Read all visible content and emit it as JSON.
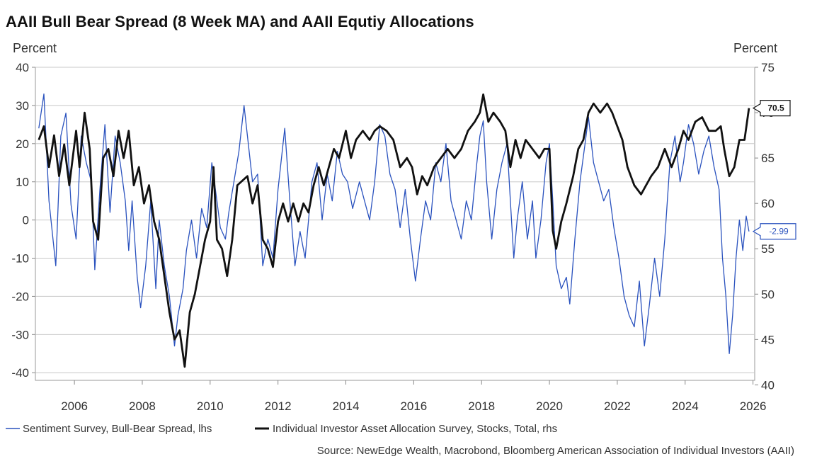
{
  "title": "AAII Bull Bear Spread (8 Week MA) and AAII Equtiy Allocations",
  "source": "Source: NewEdge Wealth, Macrobond, Bloomberg American Association of Individual Investors (AAII)",
  "chart_data": {
    "type": "line",
    "title": "AAII Bull Bear Spread (8 Week MA) and AAII Equtiy Allocations",
    "x_range": [
      2004.85,
      2026.05
    ],
    "x_ticks": [
      "2006",
      "2008",
      "2010",
      "2012",
      "2014",
      "2016",
      "2018",
      "2020",
      "2022",
      "2024",
      "2026"
    ],
    "left_axis": {
      "label": "Percent",
      "range": [
        -42,
        40
      ],
      "ticks": [
        "40",
        "30",
        "20",
        "10",
        "0",
        "-10",
        "-20",
        "-30",
        "-40"
      ]
    },
    "right_axis": {
      "label": "Percent",
      "range": [
        40.5,
        75
      ],
      "ticks": [
        "75",
        "70",
        "65",
        "60",
        "55",
        "50",
        "45",
        "40"
      ]
    },
    "grid": true,
    "series": [
      {
        "name": "Sentiment Survey, Bull-Bear Spread, lhs",
        "color": "#2a52be",
        "axis": "left",
        "last_value_label": "-2.99",
        "points": [
          [
            2004.95,
            24
          ],
          [
            2005.1,
            33
          ],
          [
            2005.25,
            5
          ],
          [
            2005.45,
            -12
          ],
          [
            2005.6,
            22
          ],
          [
            2005.75,
            28
          ],
          [
            2005.9,
            4
          ],
          [
            2006.05,
            -5
          ],
          [
            2006.2,
            22
          ],
          [
            2006.35,
            15
          ],
          [
            2006.5,
            10
          ],
          [
            2006.6,
            -13
          ],
          [
            2006.75,
            8
          ],
          [
            2006.9,
            25
          ],
          [
            2007.05,
            2
          ],
          [
            2007.2,
            22
          ],
          [
            2007.35,
            15
          ],
          [
            2007.5,
            5
          ],
          [
            2007.6,
            -8
          ],
          [
            2007.7,
            5
          ],
          [
            2007.85,
            -15
          ],
          [
            2007.95,
            -23
          ],
          [
            2008.1,
            -12
          ],
          [
            2008.25,
            5
          ],
          [
            2008.4,
            -18
          ],
          [
            2008.5,
            0
          ],
          [
            2008.65,
            -12
          ],
          [
            2008.8,
            -20
          ],
          [
            2008.95,
            -33
          ],
          [
            2009.05,
            -25
          ],
          [
            2009.2,
            -18
          ],
          [
            2009.3,
            -8
          ],
          [
            2009.45,
            0
          ],
          [
            2009.6,
            -10
          ],
          [
            2009.75,
            3
          ],
          [
            2009.9,
            -2
          ],
          [
            2010.05,
            15
          ],
          [
            2010.2,
            5
          ],
          [
            2010.3,
            -2
          ],
          [
            2010.45,
            -5
          ],
          [
            2010.55,
            2
          ],
          [
            2010.7,
            10
          ],
          [
            2010.85,
            18
          ],
          [
            2011.0,
            30
          ],
          [
            2011.1,
            22
          ],
          [
            2011.25,
            10
          ],
          [
            2011.4,
            12
          ],
          [
            2011.55,
            -12
          ],
          [
            2011.7,
            -5
          ],
          [
            2011.85,
            -10
          ],
          [
            2012.0,
            8
          ],
          [
            2012.2,
            24
          ],
          [
            2012.35,
            5
          ],
          [
            2012.5,
            -12
          ],
          [
            2012.65,
            -3
          ],
          [
            2012.8,
            -10
          ],
          [
            2013.0,
            10
          ],
          [
            2013.15,
            15
          ],
          [
            2013.3,
            0
          ],
          [
            2013.45,
            12
          ],
          [
            2013.6,
            5
          ],
          [
            2013.75,
            18
          ],
          [
            2013.9,
            12
          ],
          [
            2014.05,
            10
          ],
          [
            2014.2,
            3
          ],
          [
            2014.4,
            10
          ],
          [
            2014.55,
            5
          ],
          [
            2014.7,
            0
          ],
          [
            2014.85,
            10
          ],
          [
            2015.0,
            25
          ],
          [
            2015.15,
            22
          ],
          [
            2015.3,
            12
          ],
          [
            2015.45,
            8
          ],
          [
            2015.6,
            -2
          ],
          [
            2015.75,
            8
          ],
          [
            2015.9,
            -5
          ],
          [
            2016.05,
            -16
          ],
          [
            2016.2,
            -5
          ],
          [
            2016.35,
            5
          ],
          [
            2016.5,
            0
          ],
          [
            2016.65,
            15
          ],
          [
            2016.8,
            10
          ],
          [
            2016.95,
            20
          ],
          [
            2017.1,
            5
          ],
          [
            2017.25,
            0
          ],
          [
            2017.4,
            -5
          ],
          [
            2017.55,
            5
          ],
          [
            2017.7,
            0
          ],
          [
            2017.85,
            14
          ],
          [
            2017.95,
            22
          ],
          [
            2018.05,
            26
          ],
          [
            2018.15,
            10
          ],
          [
            2018.3,
            -5
          ],
          [
            2018.45,
            8
          ],
          [
            2018.6,
            15
          ],
          [
            2018.75,
            20
          ],
          [
            2018.85,
            5
          ],
          [
            2018.95,
            -10
          ],
          [
            2019.05,
            0
          ],
          [
            2019.2,
            10
          ],
          [
            2019.35,
            -5
          ],
          [
            2019.5,
            5
          ],
          [
            2019.6,
            -10
          ],
          [
            2019.75,
            0
          ],
          [
            2019.9,
            15
          ],
          [
            2020.0,
            20
          ],
          [
            2020.1,
            5
          ],
          [
            2020.2,
            -12
          ],
          [
            2020.35,
            -18
          ],
          [
            2020.5,
            -15
          ],
          [
            2020.6,
            -22
          ],
          [
            2020.75,
            -5
          ],
          [
            2020.9,
            10
          ],
          [
            2021.05,
            20
          ],
          [
            2021.15,
            27
          ],
          [
            2021.3,
            15
          ],
          [
            2021.45,
            10
          ],
          [
            2021.6,
            5
          ],
          [
            2021.75,
            8
          ],
          [
            2021.9,
            -2
          ],
          [
            2022.05,
            -10
          ],
          [
            2022.2,
            -20
          ],
          [
            2022.35,
            -25
          ],
          [
            2022.5,
            -28
          ],
          [
            2022.65,
            -16
          ],
          [
            2022.8,
            -33
          ],
          [
            2022.95,
            -22
          ],
          [
            2023.1,
            -10
          ],
          [
            2023.25,
            -20
          ],
          [
            2023.4,
            -5
          ],
          [
            2023.55,
            15
          ],
          [
            2023.7,
            22
          ],
          [
            2023.85,
            10
          ],
          [
            2023.95,
            15
          ],
          [
            2024.1,
            25
          ],
          [
            2024.25,
            20
          ],
          [
            2024.4,
            12
          ],
          [
            2024.55,
            18
          ],
          [
            2024.7,
            22
          ],
          [
            2024.85,
            14
          ],
          [
            2025.0,
            8
          ],
          [
            2025.1,
            -10
          ],
          [
            2025.2,
            -20
          ],
          [
            2025.3,
            -35
          ],
          [
            2025.4,
            -25
          ],
          [
            2025.5,
            -10
          ],
          [
            2025.6,
            0
          ],
          [
            2025.7,
            -8
          ],
          [
            2025.8,
            1
          ],
          [
            2025.88,
            -2.99
          ]
        ]
      },
      {
        "name": "Individual Investor Asset Allocation Survey, Stocks, Total, rhs",
        "color": "#111111",
        "axis": "right",
        "last_value_label": "70.5",
        "points": [
          [
            2004.95,
            67
          ],
          [
            2005.1,
            68.5
          ],
          [
            2005.25,
            64
          ],
          [
            2005.4,
            67.5
          ],
          [
            2005.55,
            63
          ],
          [
            2005.7,
            66.5
          ],
          [
            2005.85,
            62
          ],
          [
            2005.95,
            65
          ],
          [
            2006.05,
            68
          ],
          [
            2006.15,
            64
          ],
          [
            2006.3,
            70
          ],
          [
            2006.45,
            66
          ],
          [
            2006.55,
            58
          ],
          [
            2006.7,
            56
          ],
          [
            2006.85,
            65
          ],
          [
            2007.0,
            66
          ],
          [
            2007.15,
            63
          ],
          [
            2007.3,
            68
          ],
          [
            2007.45,
            65
          ],
          [
            2007.6,
            68
          ],
          [
            2007.75,
            62
          ],
          [
            2007.9,
            64
          ],
          [
            2008.05,
            60
          ],
          [
            2008.2,
            62
          ],
          [
            2008.35,
            58
          ],
          [
            2008.5,
            56
          ],
          [
            2008.65,
            52
          ],
          [
            2008.8,
            48
          ],
          [
            2008.95,
            45
          ],
          [
            2009.1,
            46
          ],
          [
            2009.25,
            42
          ],
          [
            2009.4,
            48
          ],
          [
            2009.55,
            50
          ],
          [
            2009.7,
            53
          ],
          [
            2009.85,
            56
          ],
          [
            2010.0,
            58
          ],
          [
            2010.1,
            64
          ],
          [
            2010.2,
            56
          ],
          [
            2010.35,
            55
          ],
          [
            2010.5,
            52
          ],
          [
            2010.65,
            56
          ],
          [
            2010.8,
            62
          ],
          [
            2010.95,
            62.5
          ],
          [
            2011.1,
            63
          ],
          [
            2011.25,
            60
          ],
          [
            2011.4,
            62
          ],
          [
            2011.55,
            56
          ],
          [
            2011.7,
            55
          ],
          [
            2011.85,
            53
          ],
          [
            2012.0,
            58
          ],
          [
            2012.15,
            60
          ],
          [
            2012.3,
            58
          ],
          [
            2012.45,
            60
          ],
          [
            2012.6,
            58
          ],
          [
            2012.75,
            60
          ],
          [
            2012.9,
            59
          ],
          [
            2013.05,
            62
          ],
          [
            2013.2,
            64
          ],
          [
            2013.35,
            62
          ],
          [
            2013.5,
            64
          ],
          [
            2013.65,
            66
          ],
          [
            2013.8,
            65
          ],
          [
            2014.0,
            68
          ],
          [
            2014.15,
            65
          ],
          [
            2014.3,
            67
          ],
          [
            2014.5,
            68
          ],
          [
            2014.7,
            67
          ],
          [
            2014.85,
            68
          ],
          [
            2015.0,
            68.5
          ],
          [
            2015.2,
            68
          ],
          [
            2015.4,
            67
          ],
          [
            2015.6,
            64
          ],
          [
            2015.8,
            65
          ],
          [
            2015.95,
            64
          ],
          [
            2016.1,
            61
          ],
          [
            2016.25,
            63
          ],
          [
            2016.4,
            62
          ],
          [
            2016.6,
            64
          ],
          [
            2016.8,
            65
          ],
          [
            2017.0,
            66
          ],
          [
            2017.2,
            65
          ],
          [
            2017.4,
            66
          ],
          [
            2017.6,
            68
          ],
          [
            2017.8,
            69
          ],
          [
            2017.95,
            70
          ],
          [
            2018.05,
            72
          ],
          [
            2018.2,
            69
          ],
          [
            2018.35,
            70
          ],
          [
            2018.55,
            69
          ],
          [
            2018.7,
            68
          ],
          [
            2018.85,
            64
          ],
          [
            2019.0,
            67
          ],
          [
            2019.15,
            65
          ],
          [
            2019.3,
            67
          ],
          [
            2019.5,
            66
          ],
          [
            2019.7,
            65
          ],
          [
            2019.85,
            66
          ],
          [
            2020.0,
            66
          ],
          [
            2020.1,
            57
          ],
          [
            2020.2,
            55
          ],
          [
            2020.35,
            58
          ],
          [
            2020.5,
            60
          ],
          [
            2020.7,
            63
          ],
          [
            2020.85,
            66
          ],
          [
            2021.0,
            67
          ],
          [
            2021.15,
            70
          ],
          [
            2021.3,
            71
          ],
          [
            2021.5,
            70
          ],
          [
            2021.7,
            71
          ],
          [
            2021.85,
            70
          ],
          [
            2022.0,
            68.5
          ],
          [
            2022.15,
            67
          ],
          [
            2022.3,
            64
          ],
          [
            2022.5,
            62
          ],
          [
            2022.7,
            61
          ],
          [
            2022.85,
            62
          ],
          [
            2023.0,
            63
          ],
          [
            2023.2,
            64
          ],
          [
            2023.4,
            66
          ],
          [
            2023.6,
            64
          ],
          [
            2023.8,
            66
          ],
          [
            2023.95,
            68
          ],
          [
            2024.1,
            67
          ],
          [
            2024.3,
            69
          ],
          [
            2024.5,
            69.5
          ],
          [
            2024.7,
            68
          ],
          [
            2024.9,
            68
          ],
          [
            2025.05,
            68.5
          ],
          [
            2025.15,
            66
          ],
          [
            2025.3,
            63
          ],
          [
            2025.45,
            64
          ],
          [
            2025.6,
            67
          ],
          [
            2025.75,
            67
          ],
          [
            2025.88,
            70.5
          ]
        ]
      }
    ]
  }
}
